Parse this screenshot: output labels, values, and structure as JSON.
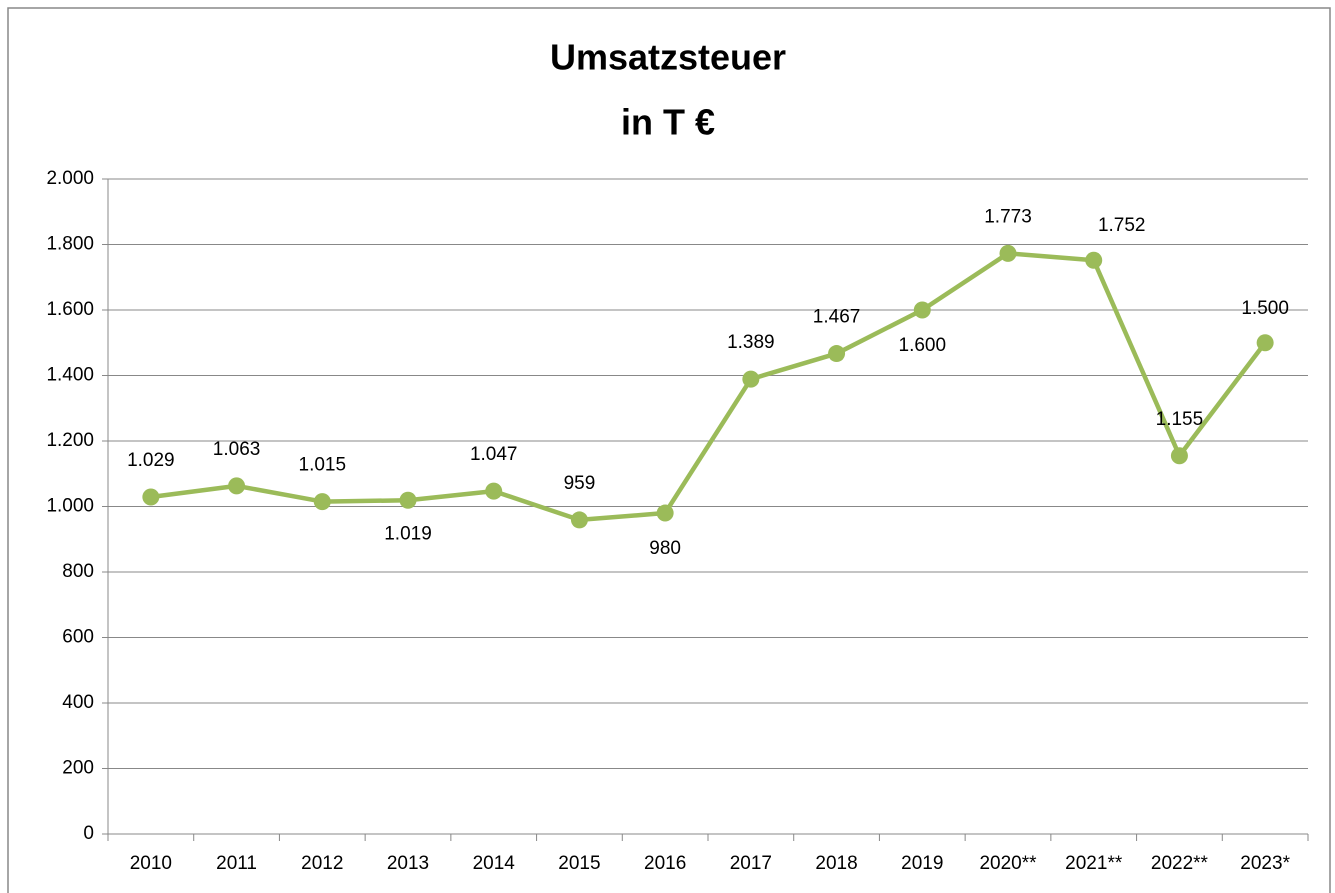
{
  "chart_data": {
    "type": "line",
    "title": "Umsatzsteuer",
    "subtitle": "in T €",
    "categories": [
      "2010",
      "2011",
      "2012",
      "2013",
      "2014",
      "2015",
      "2016",
      "2017",
      "2018",
      "2019",
      "2020**",
      "2021**",
      "2022**",
      "2023*"
    ],
    "series": [
      {
        "name": "Umsatzsteuer",
        "color": "#9bbb59",
        "values": [
          1029,
          1063,
          1015,
          1019,
          1047,
          959,
          980,
          1389,
          1467,
          1600,
          1773,
          1752,
          1155,
          1500
        ],
        "value_labels": [
          "1.029",
          "1.063",
          "1.015",
          "1.019",
          "1.047",
          "959",
          "980",
          "1.389",
          "1.467",
          "1.600",
          "1.773",
          "1.752",
          "1.155",
          "1.500"
        ]
      }
    ],
    "ylim": [
      0,
      2000
    ],
    "yticks": [
      0,
      200,
      400,
      600,
      800,
      {
        "value": 1000,
        "label": "1.000"
      },
      {
        "value": 1200,
        "label": "1.200"
      },
      {
        "value": 1400,
        "label": "1.400"
      },
      {
        "value": 1600,
        "label": "1.600"
      },
      {
        "value": 1800,
        "label": "1.800"
      },
      {
        "value": 2000,
        "label": "2.000"
      }
    ],
    "grid": true
  }
}
